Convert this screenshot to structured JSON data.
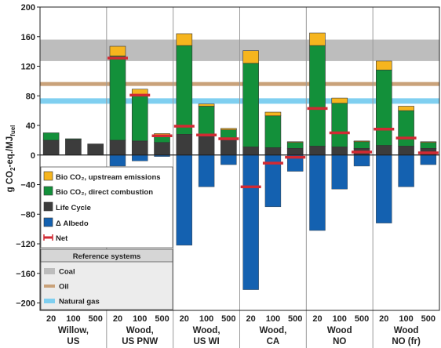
{
  "chart_data": {
    "type": "bar",
    "stacked": true,
    "ylabel_main": "g CO",
    "ylabel_sub2": "2",
    "ylabel_rest": "-eq./MJ",
    "ylabel_subfuel": "fuel",
    "ylim": [
      -210,
      200
    ],
    "yticks": [
      -200,
      -160,
      -120,
      -80,
      -40,
      0,
      40,
      80,
      120,
      160,
      200
    ],
    "groups": [
      {
        "label_line1": "Willow,",
        "label_line2": "US",
        "horizons": [
          "20",
          "100",
          "500"
        ]
      },
      {
        "label_line1": "Wood,",
        "label_line2": "US PNW",
        "horizons": [
          "20",
          "100",
          "500"
        ]
      },
      {
        "label_line1": "Wood,",
        "label_line2": "US WI",
        "horizons": [
          "20",
          "100",
          "500"
        ]
      },
      {
        "label_line1": "Wood,",
        "label_line2": "CA",
        "horizons": [
          "20",
          "100",
          "500"
        ]
      },
      {
        "label_line1": "Wood",
        "label_line2": "NO",
        "horizons": [
          "20",
          "100",
          "500"
        ]
      },
      {
        "label_line1": "Wood",
        "label_line2": "NO (fr)",
        "horizons": [
          "20",
          "100",
          "500"
        ]
      }
    ],
    "series_names": {
      "upstream": "Bio CO₂, upstream emissions",
      "direct": "Bio CO₂, direct combustion",
      "lifecycle": "Life Cycle",
      "albedo": "Δ Albedo",
      "net": "Net"
    },
    "bars": [
      {
        "lifecycle": 20,
        "direct": 10,
        "upstream": 0,
        "albedo": 0,
        "net": null
      },
      {
        "lifecycle": 21,
        "direct": 1,
        "upstream": 0,
        "albedo": 0,
        "net": null
      },
      {
        "lifecycle": 15,
        "direct": 0,
        "upstream": 0,
        "albedo": 0,
        "net": null
      },
      {
        "lifecycle": 20,
        "direct": 114,
        "upstream": 13,
        "albedo": -15,
        "net": 131
      },
      {
        "lifecycle": 19,
        "direct": 61,
        "upstream": 9,
        "albedo": -8,
        "net": 81
      },
      {
        "lifecycle": 17,
        "direct": 8,
        "upstream": 4,
        "albedo": -2,
        "net": 26
      },
      {
        "lifecycle": 28,
        "direct": 120,
        "upstream": 16,
        "albedo": -122,
        "net": 39
      },
      {
        "lifecycle": 26,
        "direct": 40,
        "upstream": 3,
        "albedo": -43,
        "net": 27
      },
      {
        "lifecycle": 22,
        "direct": 12,
        "upstream": 2,
        "albedo": -13,
        "net": 22
      },
      {
        "lifecycle": 11,
        "direct": 113,
        "upstream": 17,
        "albedo": -182,
        "net": -43
      },
      {
        "lifecycle": 10,
        "direct": 43,
        "upstream": 5,
        "albedo": -70,
        "net": -11
      },
      {
        "lifecycle": 9,
        "direct": 8,
        "upstream": 1,
        "albedo": -22,
        "net": -3
      },
      {
        "lifecycle": 12,
        "direct": 136,
        "upstream": 17,
        "albedo": -102,
        "net": 63
      },
      {
        "lifecycle": 11,
        "direct": 59,
        "upstream": 7,
        "albedo": -46,
        "net": 30
      },
      {
        "lifecycle": 9,
        "direct": 9,
        "upstream": 1,
        "albedo": -15,
        "net": 4
      },
      {
        "lifecycle": 13,
        "direct": 102,
        "upstream": 12,
        "albedo": -92,
        "net": 35
      },
      {
        "lifecycle": 12,
        "direct": 48,
        "upstream": 6,
        "albedo": -43,
        "net": 23
      },
      {
        "lifecycle": 9,
        "direct": 8,
        "upstream": 1,
        "albedo": -13,
        "net": 3
      }
    ],
    "reference_systems": {
      "title": "Reference systems",
      "coal": {
        "name": "Coal",
        "y_low": 127,
        "y_high": 156,
        "color": "#bdbdbd"
      },
      "oil": {
        "name": "Oil",
        "y": 96,
        "color": "#c9a27a"
      },
      "natural_gas": {
        "name": "Natural gas",
        "y": 73,
        "color": "#7fcff0"
      }
    },
    "colors": {
      "upstream": "#f6b51e",
      "direct": "#13903a",
      "lifecycle": "#3c3c3c",
      "albedo": "#1461b0",
      "net": "#d12a33"
    }
  }
}
